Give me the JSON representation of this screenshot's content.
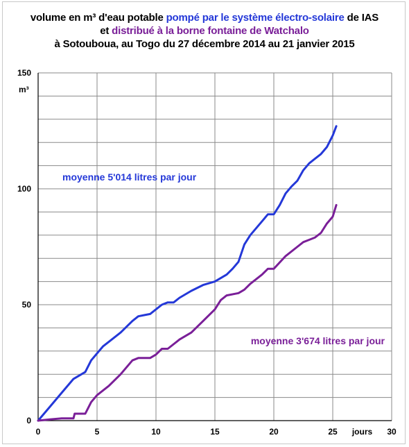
{
  "title": {
    "line1_pre": "volume en m³ d'eau potable ",
    "line1_blue": "pompé par le système électro-solaire",
    "line1_post": " de IAS",
    "line2_pre": "et ",
    "line2_purple": "distribué à la borne fontaine de Watchalo",
    "line3": "à Sotouboua, au Togo du 27 décembre 2014 au 21 janvier 2015"
  },
  "colors": {
    "blue": "#2438d8",
    "purple": "#7a1f98",
    "grid": "#8a8a8a"
  },
  "chart_data": {
    "type": "line",
    "xlabel": "jours",
    "ylabel": "m³",
    "xlim": [
      0,
      30
    ],
    "ylim": [
      0,
      150
    ],
    "x_ticks": [
      0,
      5,
      10,
      15,
      20,
      25,
      30
    ],
    "y_ticks": [
      0,
      50,
      100,
      150
    ],
    "grid": true,
    "annotations": [
      {
        "text": "moyenne 5'014 litres par jour",
        "color": "#2438d8"
      },
      {
        "text": "moyenne 3'674 litres par jour",
        "color": "#7a1f98"
      }
    ],
    "series": [
      {
        "color": "#2438d8",
        "x": [
          0,
          1,
          2,
          3,
          4,
          4.5,
          5,
          5.5,
          6,
          7,
          8,
          8.5,
          9,
          9.5,
          10,
          10.5,
          11,
          11.5,
          12,
          13,
          14,
          15,
          16,
          16.5,
          17,
          17.5,
          18,
          18.5,
          19,
          19.5,
          20,
          20.5,
          21,
          21.5,
          22,
          22.5,
          23,
          23.5,
          24,
          24.5,
          25,
          25.3
        ],
        "y": [
          0,
          6,
          12,
          18,
          21,
          26,
          29,
          32,
          34,
          38,
          43,
          45,
          45.5,
          46,
          48,
          50,
          51,
          51,
          53,
          56,
          58.5,
          60,
          63,
          65.5,
          68.5,
          76,
          80,
          83,
          86,
          89,
          89,
          93,
          98,
          101,
          103.5,
          108,
          111,
          113,
          115,
          118,
          123,
          127
        ]
      },
      {
        "color": "#7a1f98",
        "x": [
          0,
          1,
          2,
          3,
          3.1,
          4,
          4.5,
          5,
          6,
          7,
          8,
          8.5,
          9,
          9.5,
          10,
          10.5,
          11,
          12,
          13,
          14,
          15,
          15.5,
          16,
          17,
          17.5,
          18,
          19,
          19.5,
          20,
          21,
          22,
          22.5,
          23,
          23.5,
          24,
          24.5,
          25,
          25.3
        ],
        "y": [
          0,
          0.5,
          1,
          1,
          3,
          3,
          8,
          11,
          15,
          20,
          26,
          27,
          27,
          27,
          28.5,
          31,
          31,
          35,
          38,
          43,
          48,
          52,
          54,
          55,
          56.5,
          59,
          63,
          65.5,
          65.5,
          71,
          75,
          77,
          78,
          79,
          81,
          85,
          88,
          93
        ]
      }
    ]
  }
}
